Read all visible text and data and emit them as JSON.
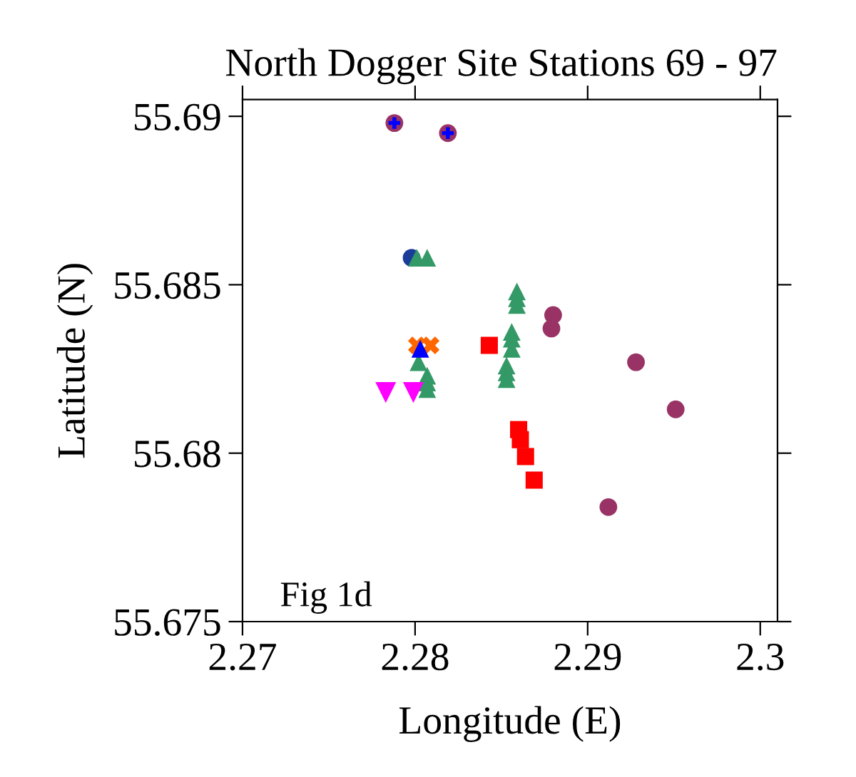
{
  "chart_data": {
    "type": "scatter",
    "title": "North Dogger Site Stations 69 - 97",
    "xlabel": "Longitude (E)",
    "ylabel": "Latitude (N)",
    "annotations": [
      "Fig 1d"
    ],
    "xlim": [
      2.27,
      2.301
    ],
    "ylim": [
      55.675,
      55.6905
    ],
    "xticks": [
      2.27,
      2.28,
      2.29,
      {
        "value": 2.3,
        "label": "2.3"
      }
    ],
    "yticks": [
      55.675,
      {
        "value": 55.68,
        "label": "55.68"
      },
      55.685,
      {
        "value": 55.69,
        "label": "55.69"
      }
    ],
    "grid": false,
    "legend": false,
    "series": [
      {
        "color": "#993366",
        "marker": "circle",
        "x": [
          2.2788,
          2.2819,
          2.288,
          2.2879,
          2.2928,
          2.2951,
          2.2912
        ],
        "values": [
          55.6898,
          55.6895,
          55.6841,
          55.6837,
          55.6827,
          55.6813,
          55.6784
        ]
      },
      {
        "color": "#0000ff",
        "marker": "plus",
        "x": [
          2.2788,
          2.2819
        ],
        "values": [
          55.6898,
          55.6895
        ]
      },
      {
        "color": "#1a3d99",
        "marker": "circle",
        "x": [
          2.2798
        ],
        "values": [
          55.6858
        ]
      },
      {
        "color": "#339966",
        "marker": "triangle",
        "x": [
          2.2801,
          2.2807,
          2.2859,
          2.2859,
          2.2859,
          2.2856,
          2.2856,
          2.2856,
          2.2853,
          2.2853,
          2.2853,
          2.2802,
          2.2807,
          2.2807,
          2.2807
        ],
        "values": [
          55.6858,
          55.6858,
          55.6848,
          55.6846,
          55.6844,
          55.6836,
          55.6834,
          55.6831,
          55.6826,
          55.6824,
          55.6822,
          55.6827,
          55.6823,
          55.6821,
          55.6819
        ]
      },
      {
        "color": "#ff6600",
        "marker": "cross",
        "x": [
          2.2801,
          2.2809
        ],
        "values": [
          55.6832,
          55.6832
        ]
      },
      {
        "color": "#0000ff",
        "marker": "triangle",
        "x": [
          2.2803
        ],
        "values": [
          55.6831
        ]
      },
      {
        "color": "#ff00ff",
        "marker": "triangle_down",
        "x": [
          2.2783,
          2.2799
        ],
        "values": [
          55.6818,
          55.6818
        ]
      },
      {
        "color": "#ff0000",
        "marker": "square",
        "x": [
          2.2843,
          2.286,
          2.2861,
          2.2864,
          2.2869
        ],
        "values": [
          55.6832,
          55.6807,
          55.6804,
          55.6799,
          55.6792
        ]
      }
    ]
  }
}
